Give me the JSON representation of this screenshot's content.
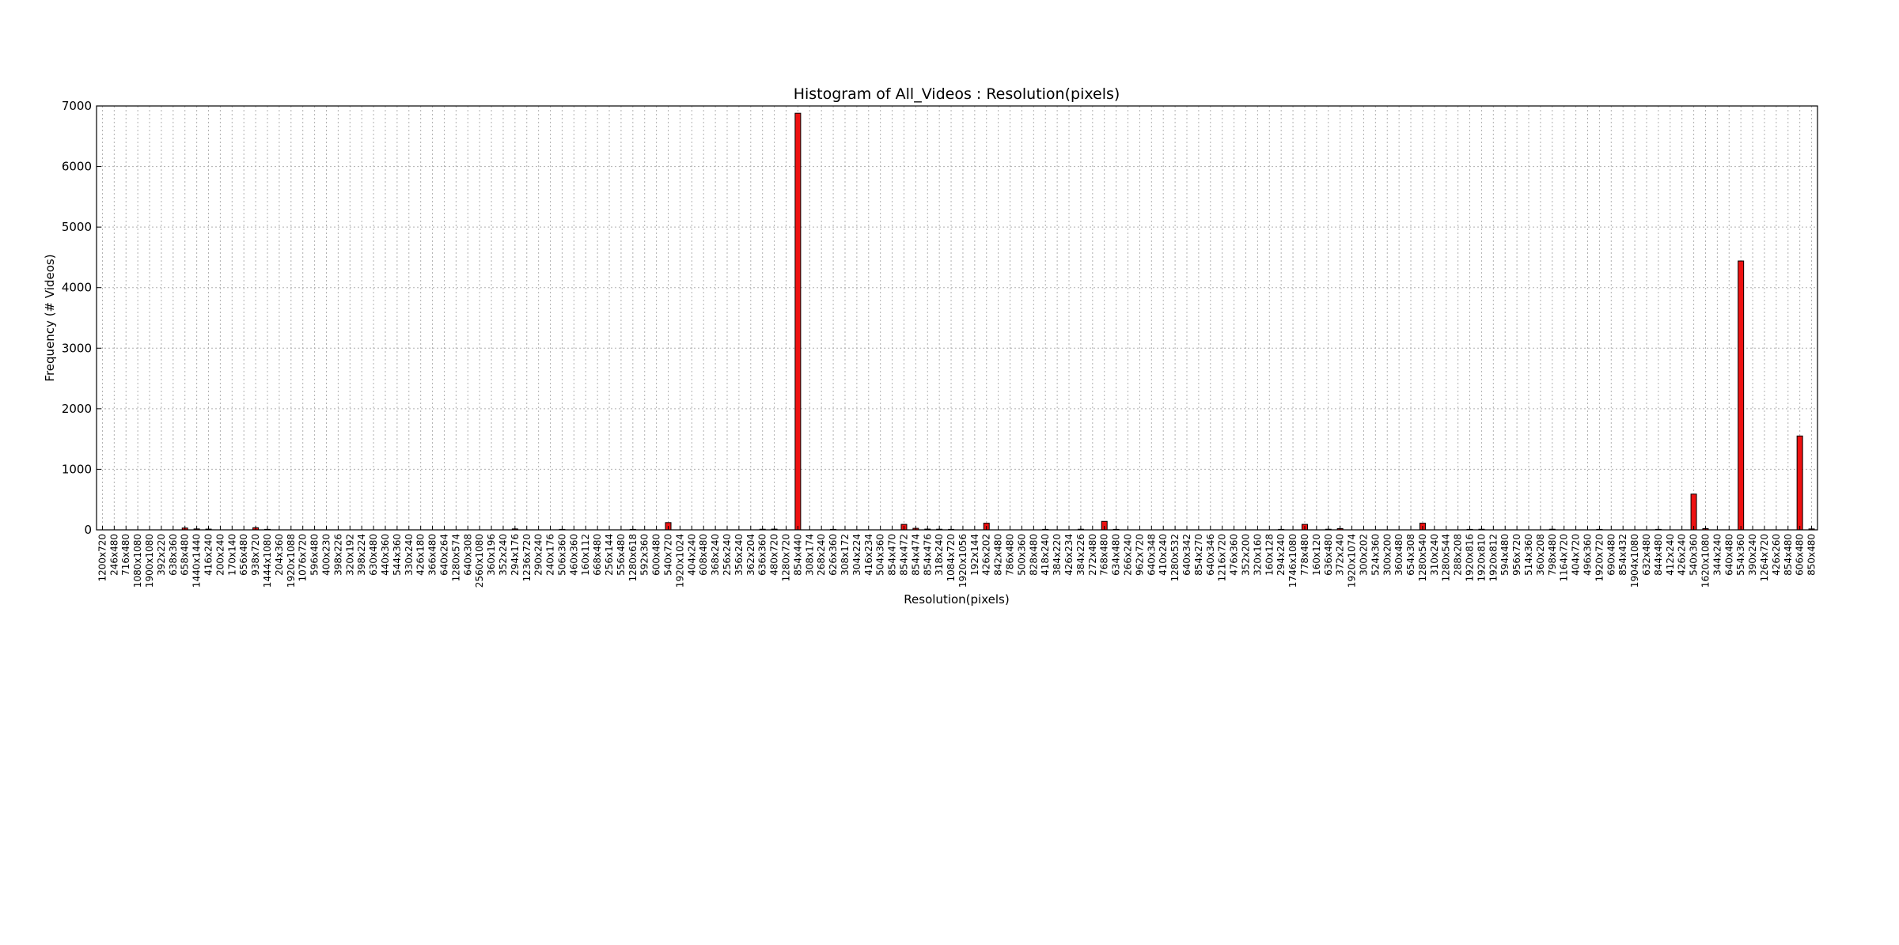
{
  "chart_data": {
    "type": "bar",
    "title": "Histogram of All_Videos : Resolution(pixels)",
    "xlabel": "Resolution(pixels)",
    "ylabel": "Frequency (# Videos)",
    "ylim": [
      0,
      7000
    ],
    "yticks": [
      0,
      1000,
      2000,
      3000,
      4000,
      5000,
      6000,
      7000
    ],
    "grid": true,
    "bar_color": "#ee1111",
    "categories": [
      "1200x720",
      "246x480",
      "716x480",
      "1080x1080",
      "1900x1080",
      "392x220",
      "638x360",
      "658x480",
      "1440x1440",
      "416x240",
      "200x240",
      "170x140",
      "656x480",
      "938x720",
      "1444x1080",
      "204x360",
      "1920x1088",
      "1076x720",
      "596x480",
      "400x230",
      "398x226",
      "320x192",
      "398x224",
      "630x480",
      "440x360",
      "544x360",
      "330x240",
      "426x180",
      "366x480",
      "640x264",
      "1280x574",
      "640x308",
      "2560x1080",
      "360x196",
      "352x240",
      "294x176",
      "1236x720",
      "290x240",
      "240x176",
      "506x360",
      "460x360",
      "160x112",
      "668x480",
      "256x144",
      "556x480",
      "1280x618",
      "592x360",
      "600x480",
      "540x720",
      "1920x1024",
      "404x240",
      "608x480",
      "368x240",
      "256x240",
      "356x240",
      "362x204",
      "636x360",
      "480x720",
      "1280x720",
      "854x440",
      "308x174",
      "268x240",
      "626x360",
      "308x172",
      "304x224",
      "416x234",
      "504x360",
      "854x470",
      "854x472",
      "854x474",
      "854x476",
      "318x240",
      "1084x720",
      "1920x1056",
      "192x144",
      "426x202",
      "842x480",
      "786x480",
      "500x360",
      "828x480",
      "418x240",
      "384x220",
      "426x234",
      "384x226",
      "272x480",
      "768x480",
      "634x480",
      "266x240",
      "962x720",
      "640x348",
      "410x240",
      "1280x532",
      "640x342",
      "854x270",
      "640x346",
      "1216x720",
      "476x360",
      "352x200",
      "320x160",
      "160x128",
      "294x240",
      "1746x1080",
      "778x480",
      "160x120",
      "636x480",
      "372x240",
      "1920x1074",
      "300x202",
      "524x360",
      "300x200",
      "360x480",
      "654x308",
      "1280x540",
      "310x240",
      "1280x544",
      "288x208",
      "1920x816",
      "1920x810",
      "1920x812",
      "594x480",
      "956x720",
      "514x360",
      "360x208",
      "798x480",
      "1164x720",
      "404x720",
      "496x360",
      "1920x720",
      "690x480",
      "854x432",
      "1904x1080",
      "632x480",
      "844x480",
      "412x240",
      "426x240",
      "540x360",
      "1620x1080",
      "344x240",
      "640x480",
      "554x360",
      "390x240",
      "1264x720",
      "426x260",
      "854x480",
      "606x480",
      "850x480"
    ],
    "values": [
      0,
      0,
      0,
      0,
      0,
      0,
      0,
      30,
      15,
      12,
      0,
      0,
      0,
      35,
      8,
      0,
      0,
      0,
      0,
      0,
      0,
      0,
      0,
      0,
      0,
      0,
      0,
      0,
      0,
      0,
      0,
      0,
      0,
      0,
      0,
      15,
      0,
      0,
      0,
      8,
      0,
      0,
      0,
      0,
      0,
      8,
      0,
      0,
      120,
      0,
      0,
      0,
      0,
      0,
      0,
      0,
      10,
      12,
      0,
      6880,
      0,
      0,
      8,
      0,
      0,
      0,
      0,
      0,
      90,
      25,
      12,
      10,
      8,
      0,
      0,
      110,
      0,
      0,
      0,
      0,
      8,
      0,
      0,
      10,
      0,
      140,
      8,
      0,
      0,
      0,
      0,
      0,
      0,
      0,
      0,
      0,
      0,
      0,
      0,
      0,
      8,
      0,
      90,
      0,
      10,
      20,
      0,
      0,
      0,
      0,
      0,
      0,
      110,
      0,
      0,
      0,
      8,
      10,
      0,
      0,
      0,
      0,
      0,
      10,
      0,
      0,
      0,
      8,
      0,
      0,
      0,
      0,
      8,
      0,
      0,
      590,
      20,
      0,
      0,
      4440,
      0,
      0,
      0,
      0,
      1550,
      15
    ]
  }
}
